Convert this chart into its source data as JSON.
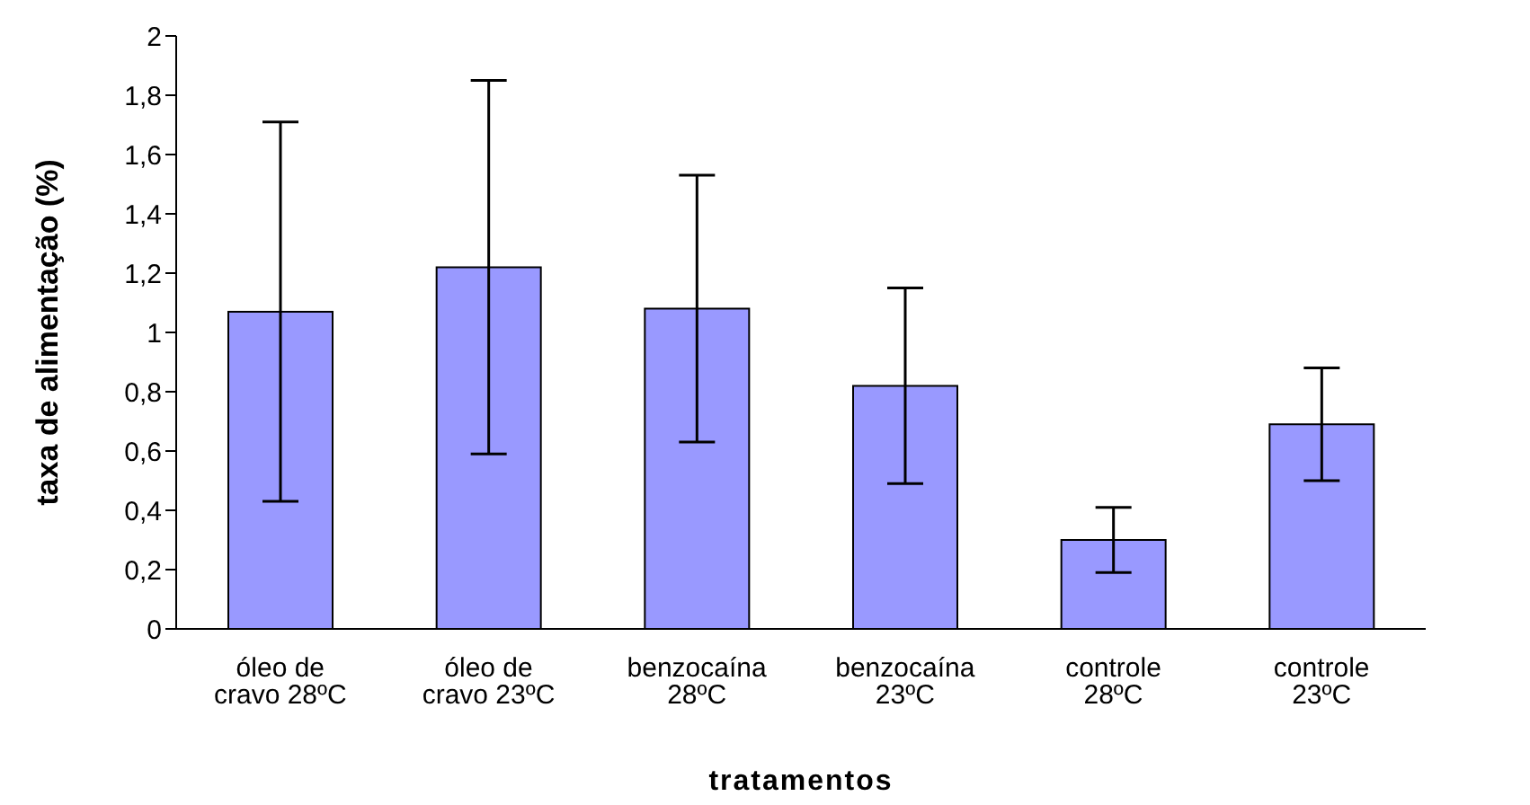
{
  "chart_data": {
    "type": "bar",
    "xlabel": "tratamentos",
    "ylabel": "taxa de alimentação (%)",
    "categories": [
      "óleo de cravo 28ºC",
      "óleo de cravo 23ºC",
      "benzocaína 28ºC",
      "benzocaína 23ºC",
      "controle 28ºC",
      "controle 23ºC"
    ],
    "values": [
      1.07,
      1.22,
      1.08,
      0.82,
      0.3,
      0.69
    ],
    "errors": [
      0.64,
      0.63,
      0.45,
      0.33,
      0.11,
      0.19
    ],
    "color": "#9999ff",
    "ylim": [
      0,
      2
    ],
    "yticks": [
      0,
      {
        "value": 0.2,
        "label": "0,2"
      },
      {
        "value": 0.4,
        "label": "0,4"
      },
      {
        "value": 0.6,
        "label": "0,6"
      },
      {
        "value": 0.8,
        "label": "0,8"
      },
      1,
      {
        "value": 1.2,
        "label": "1,2"
      },
      {
        "value": 1.4,
        "label": "1,4"
      },
      {
        "value": 1.6,
        "label": "1,6"
      },
      {
        "value": 1.8,
        "label": "1,8"
      },
      2
    ],
    "grid": false,
    "legend": false
  }
}
